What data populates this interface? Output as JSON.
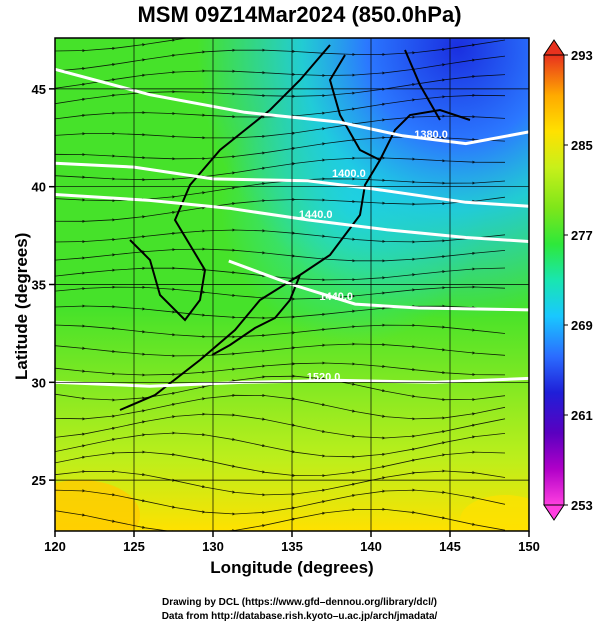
{
  "title": "MSM 09Z14Mar2024 (850.0hPa)",
  "x_axis": {
    "label": "Longitude (degrees)",
    "range": [
      120,
      150
    ],
    "ticks": [
      120,
      125,
      130,
      135,
      140,
      145,
      150
    ]
  },
  "y_axis": {
    "label": "Latitude  (degrees)",
    "range": [
      22.4,
      47.6
    ],
    "ticks": [
      25,
      30,
      35,
      40,
      45
    ]
  },
  "colorbar": {
    "range": [
      253,
      293
    ],
    "ticks": [
      293,
      285,
      277,
      269,
      261,
      253
    ],
    "colors": [
      "#ff3fe0",
      "#b000c8",
      "#5a00c0",
      "#1f1fd8",
      "#2b6cff",
      "#19c8ff",
      "#19e6b0",
      "#2ee83a",
      "#7ee61a",
      "#c8f01a",
      "#ffe100",
      "#ffaa00",
      "#ff5a1f",
      "#e8321e"
    ]
  },
  "contours": {
    "color": "#ffffff",
    "labels": [
      {
        "text": "1380.0",
        "lon": 143.8,
        "lat": 42.5
      },
      {
        "text": "1400.0",
        "lon": 138.6,
        "lat": 40.5
      },
      {
        "text": "1440.0",
        "lon": 136.5,
        "lat": 38.4
      },
      {
        "text": "1440.0",
        "lon": 137.8,
        "lat": 34.2
      },
      {
        "text": "1520.0",
        "lon": 137.0,
        "lat": 30.1
      }
    ]
  },
  "credits": {
    "line1": "Drawing by DCL (https://www.gfd–dennou.org/library/dcl/)",
    "line2": "Data from http://database.rish.kyoto–u.ac.jp/arch/jmadata/"
  }
}
